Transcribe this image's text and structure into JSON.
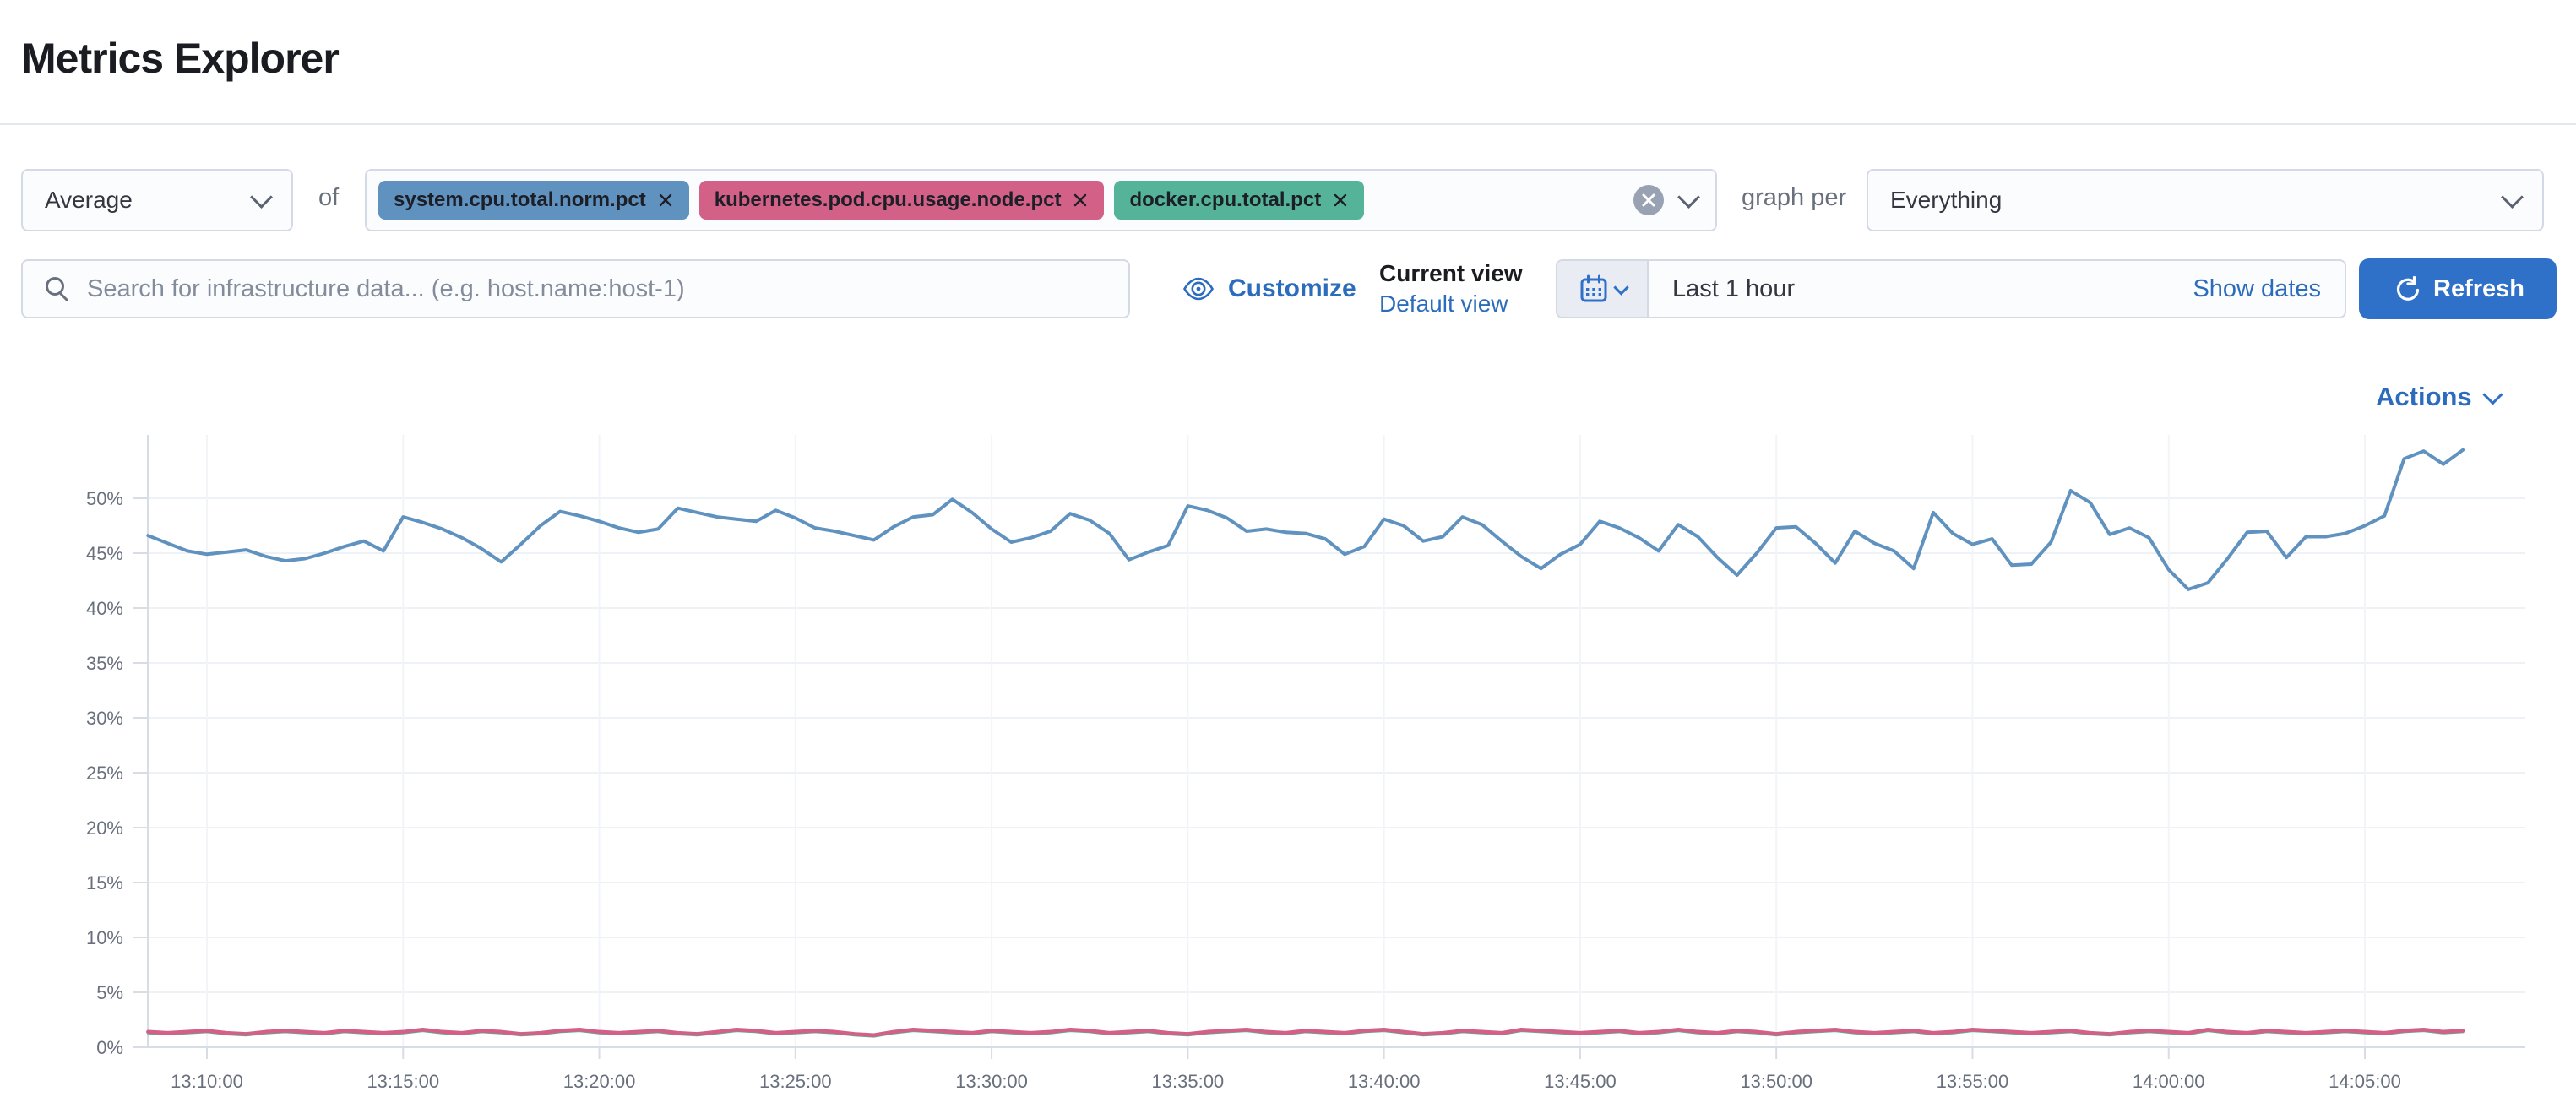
{
  "page": {
    "title": "Metrics Explorer"
  },
  "toolbar": {
    "aggregation": {
      "value": "Average"
    },
    "of_label": "of",
    "metrics": [
      {
        "label": "system.cpu.total.norm.pct",
        "color": "#6092C0"
      },
      {
        "label": "kubernetes.pod.cpu.usage.node.pct",
        "color": "#D36086"
      },
      {
        "label": "docker.cpu.total.pct",
        "color": "#54B399"
      }
    ],
    "clear_icon": "circle-cross",
    "graph_per_label": "graph per",
    "group_by": {
      "value": "Everything"
    }
  },
  "searchbar": {
    "placeholder": "Search for infrastructure data... (e.g. host.name:host-1)",
    "customize_label": "Customize",
    "current_view_label": "Current view",
    "view_name": "Default view",
    "time_range": "Last 1 hour",
    "show_dates_label": "Show dates",
    "refresh_label": "Refresh"
  },
  "chart": {
    "actions_label": "Actions"
  },
  "colors": {
    "link_blue": "#2b6cbd",
    "button_blue": "#2f70c8",
    "series_blue": "#6092C0",
    "series_pink": "#D36086",
    "series_green": "#54B399",
    "axis_label_gray": "#69707d"
  },
  "chart_data": {
    "type": "line",
    "title": "",
    "xlabel": "",
    "ylabel": "",
    "x_range": [
      "13:08:30",
      "14:07:30"
    ],
    "step_seconds": 30,
    "start_min_offset": -1.5,
    "step_min": 0.5,
    "grid": true,
    "legend": false,
    "x_axis": {
      "tick_labels": [
        "13:10:00",
        "13:15:00",
        "13:20:00",
        "13:25:00",
        "13:30:00",
        "13:35:00",
        "13:40:00",
        "13:45:00",
        "13:50:00",
        "13:55:00",
        "14:00:00",
        "14:05:00"
      ]
    },
    "y_axis": {
      "tick_labels": [
        "0%",
        "5%",
        "10%",
        "15%",
        "20%",
        "25%",
        "30%",
        "35%",
        "40%",
        "45%",
        "50%"
      ],
      "range_pct": [
        0,
        55.5
      ]
    },
    "series": [
      {
        "name": "system.cpu.total.norm.pct",
        "color": "#6092C0",
        "values": [
          46.6,
          45.9,
          45.2,
          44.9,
          45.1,
          45.3,
          44.7,
          44.3,
          44.5,
          45.0,
          45.6,
          46.1,
          45.2,
          48.3,
          47.8,
          47.2,
          46.4,
          45.4,
          44.2,
          45.8,
          47.5,
          48.8,
          48.4,
          47.9,
          47.3,
          46.9,
          47.2,
          49.1,
          48.7,
          48.3,
          48.1,
          47.9,
          48.9,
          48.2,
          47.3,
          47.0,
          46.6,
          46.2,
          47.4,
          48.3,
          48.5,
          49.9,
          48.7,
          47.2,
          46.0,
          46.4,
          47.0,
          48.6,
          48.0,
          46.8,
          44.4,
          45.1,
          45.7,
          49.3,
          48.9,
          48.2,
          47.0,
          47.2,
          46.9,
          46.8,
          46.3,
          44.9,
          45.6,
          48.1,
          47.5,
          46.1,
          46.5,
          48.3,
          47.6,
          46.1,
          44.7,
          43.6,
          44.9,
          45.8,
          47.9,
          47.3,
          46.4,
          45.2,
          47.6,
          46.5,
          44.6,
          43.0,
          45.0,
          47.3,
          47.4,
          45.9,
          44.1,
          47.0,
          45.9,
          45.2,
          43.6,
          48.7,
          46.8,
          45.8,
          46.3,
          43.9,
          44.0,
          46.0,
          50.7,
          49.6,
          46.7,
          47.3,
          46.4,
          43.5,
          41.7,
          42.3,
          44.5,
          46.9,
          47.0,
          44.6,
          46.5,
          46.5,
          46.8,
          47.5,
          48.4,
          53.6,
          54.3,
          53.1,
          54.4
        ]
      },
      {
        "name": "docker.cpu.total.pct",
        "color": "#54B399",
        "values": [
          1.3,
          1.2,
          1.3,
          1.4,
          1.2,
          1.1,
          1.3,
          1.4,
          1.3,
          1.2,
          1.4,
          1.3,
          1.2,
          1.3,
          1.5,
          1.3,
          1.2,
          1.4,
          1.3,
          1.1,
          1.2,
          1.4,
          1.5,
          1.3,
          1.2,
          1.3,
          1.4,
          1.2,
          1.1,
          1.3,
          1.5,
          1.4,
          1.2,
          1.3,
          1.4,
          1.3,
          1.1,
          1.0,
          1.3,
          1.5,
          1.4,
          1.3,
          1.2,
          1.4,
          1.3,
          1.2,
          1.3,
          1.5,
          1.4,
          1.2,
          1.3,
          1.4,
          1.2,
          1.1,
          1.3,
          1.4,
          1.5,
          1.3,
          1.2,
          1.4,
          1.3,
          1.2,
          1.4,
          1.5,
          1.3,
          1.1,
          1.2,
          1.4,
          1.3,
          1.2,
          1.5,
          1.4,
          1.3,
          1.2,
          1.3,
          1.4,
          1.2,
          1.3,
          1.5,
          1.3,
          1.2,
          1.4,
          1.3,
          1.1,
          1.3,
          1.4,
          1.5,
          1.3,
          1.2,
          1.3,
          1.4,
          1.2,
          1.3,
          1.5,
          1.4,
          1.3,
          1.2,
          1.3,
          1.4,
          1.2,
          1.1,
          1.3,
          1.4,
          1.3,
          1.2,
          1.5,
          1.3,
          1.2,
          1.4,
          1.3,
          1.2,
          1.3,
          1.4,
          1.3,
          1.2,
          1.4,
          1.5,
          1.3,
          1.4
        ]
      },
      {
        "name": "kubernetes.pod.cpu.usage.node.pct",
        "color": "#D36086",
        "values": [
          1.4,
          1.3,
          1.4,
          1.5,
          1.3,
          1.2,
          1.4,
          1.5,
          1.4,
          1.3,
          1.5,
          1.4,
          1.3,
          1.4,
          1.6,
          1.4,
          1.3,
          1.5,
          1.4,
          1.2,
          1.3,
          1.5,
          1.6,
          1.4,
          1.3,
          1.4,
          1.5,
          1.3,
          1.2,
          1.4,
          1.6,
          1.5,
          1.3,
          1.4,
          1.5,
          1.4,
          1.2,
          1.1,
          1.4,
          1.6,
          1.5,
          1.4,
          1.3,
          1.5,
          1.4,
          1.3,
          1.4,
          1.6,
          1.5,
          1.3,
          1.4,
          1.5,
          1.3,
          1.2,
          1.4,
          1.5,
          1.6,
          1.4,
          1.3,
          1.5,
          1.4,
          1.3,
          1.5,
          1.6,
          1.4,
          1.2,
          1.3,
          1.5,
          1.4,
          1.3,
          1.6,
          1.5,
          1.4,
          1.3,
          1.4,
          1.5,
          1.3,
          1.4,
          1.6,
          1.4,
          1.3,
          1.5,
          1.4,
          1.2,
          1.4,
          1.5,
          1.6,
          1.4,
          1.3,
          1.4,
          1.5,
          1.3,
          1.4,
          1.6,
          1.5,
          1.4,
          1.3,
          1.4,
          1.5,
          1.3,
          1.2,
          1.4,
          1.5,
          1.4,
          1.3,
          1.6,
          1.4,
          1.3,
          1.5,
          1.4,
          1.3,
          1.4,
          1.5,
          1.4,
          1.3,
          1.5,
          1.6,
          1.4,
          1.5
        ]
      }
    ]
  }
}
